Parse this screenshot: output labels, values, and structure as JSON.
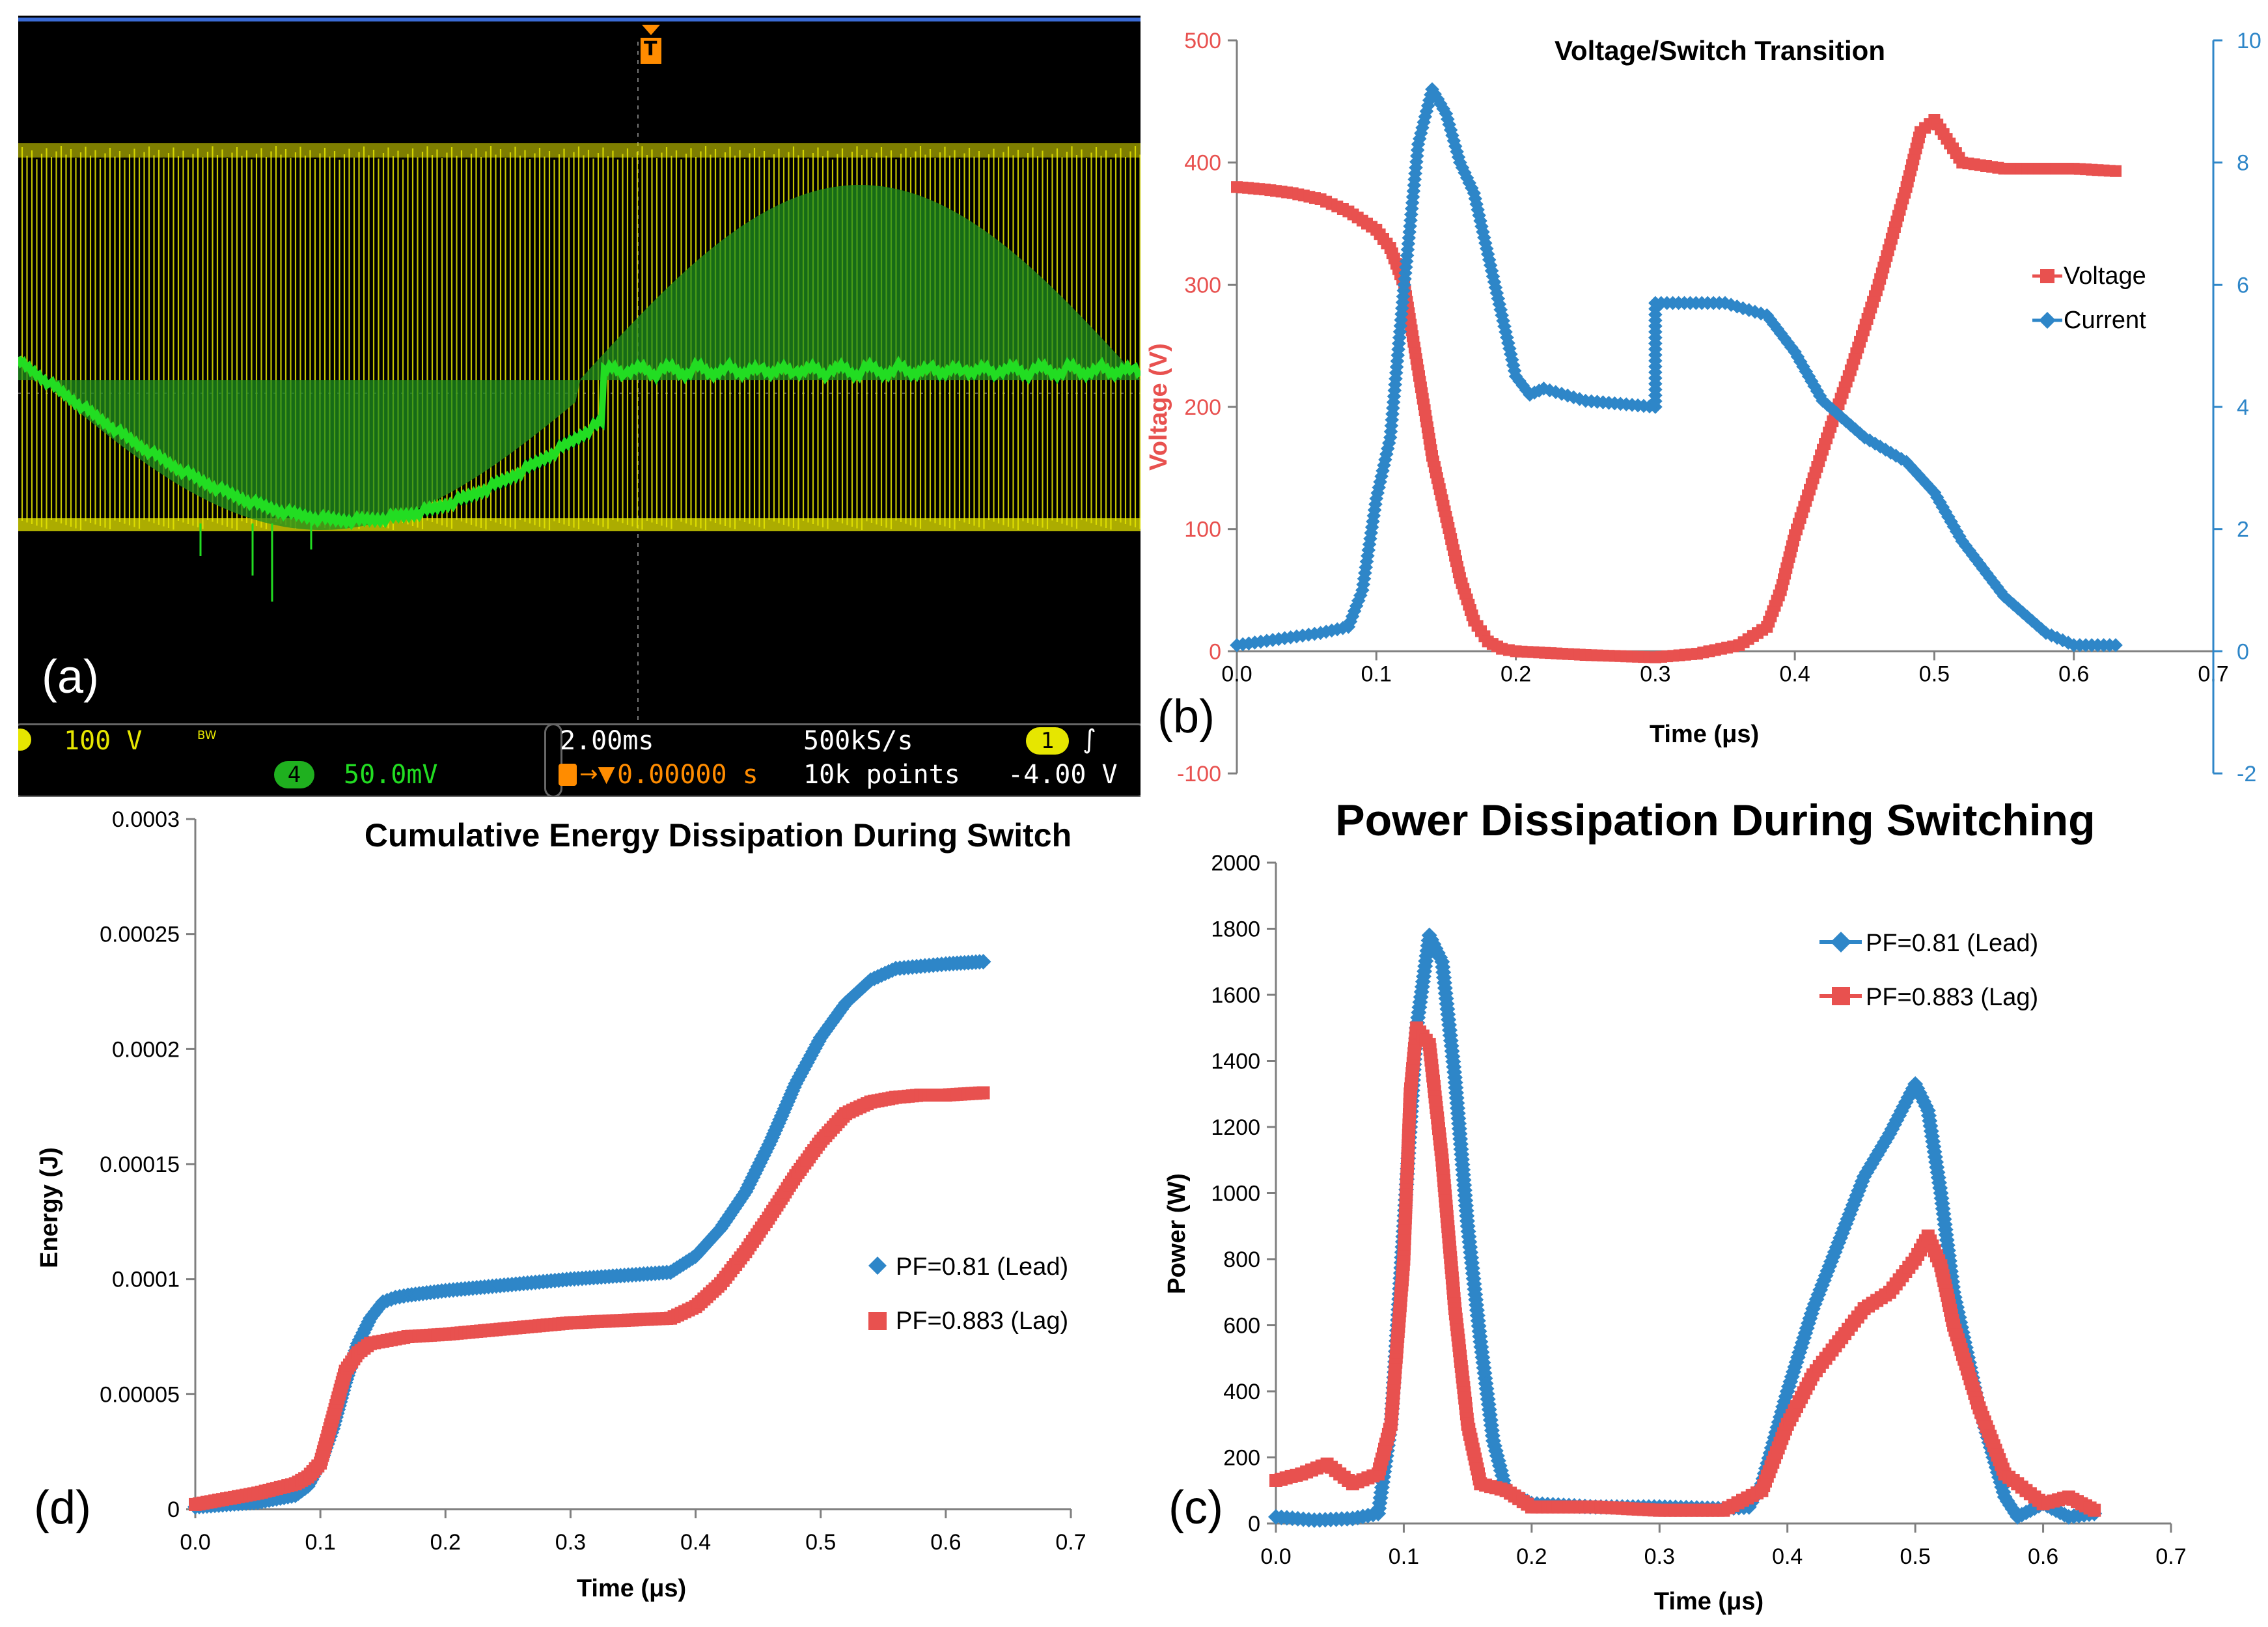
{
  "scope": {
    "panel_label": "(a)",
    "ch1_scale": "100 V",
    "bw": "BW",
    "ch4_badge": "4",
    "ch4_scale": "50.0mV",
    "timebase": "2.00ms",
    "trigger_pos": "0.00000 s",
    "sample_rate": "500kS/s",
    "record_len": "10k points",
    "trig_ch": "1",
    "trig_level": "-4.00 V",
    "trigger_marker": "T",
    "colors": {
      "ch1": "#e6e600",
      "ch4": "#22dd22",
      "bg": "#000000",
      "accent": "#ff8c00"
    }
  },
  "chart_data": [
    {
      "id": "b",
      "panel_label": "(b)",
      "type": "line",
      "title": "Voltage/Switch Transition",
      "xlabel": "Time (μs)",
      "ylabel": "Voltage (V)",
      "y2label": "",
      "xlim": [
        0,
        0.7
      ],
      "ylim": [
        -100,
        500
      ],
      "y2lim": [
        -2,
        10
      ],
      "xticks": [
        "0.0",
        "0.1",
        "0.2",
        "0.3",
        "0.4",
        "0.5",
        "0.6",
        "0.7"
      ],
      "yticks": [
        "-100",
        "0",
        "100",
        "200",
        "300",
        "400",
        "500"
      ],
      "y2ticks": [
        "-2",
        "0",
        "2",
        "4",
        "6",
        "8",
        "10"
      ],
      "legend_position": "right",
      "series": [
        {
          "name": "Voltage",
          "axis": "left",
          "color": "#e8514f",
          "marker": "square",
          "x": [
            0,
            0.02,
            0.04,
            0.06,
            0.08,
            0.1,
            0.11,
            0.12,
            0.13,
            0.14,
            0.15,
            0.16,
            0.17,
            0.18,
            0.19,
            0.2,
            0.25,
            0.3,
            0.33,
            0.36,
            0.38,
            0.39,
            0.4,
            0.42,
            0.44,
            0.46,
            0.48,
            0.49,
            0.5,
            0.52,
            0.55,
            0.6,
            0.63
          ],
          "y": [
            380,
            378,
            375,
            370,
            360,
            345,
            330,
            300,
            230,
            160,
            110,
            60,
            25,
            8,
            2,
            0,
            -3,
            -5,
            -2,
            5,
            20,
            50,
            95,
            165,
            230,
            300,
            380,
            425,
            435,
            400,
            395,
            395,
            393
          ]
        },
        {
          "name": "Current",
          "axis": "right",
          "color": "#2e86c8",
          "marker": "diamond",
          "x": [
            0,
            0.03,
            0.06,
            0.08,
            0.09,
            0.1,
            0.11,
            0.12,
            0.13,
            0.14,
            0.15,
            0.16,
            0.17,
            0.18,
            0.19,
            0.2,
            0.21,
            0.22,
            0.25,
            0.3,
            0.3,
            0.35,
            0.38,
            0.4,
            0.42,
            0.45,
            0.48,
            0.5,
            0.52,
            0.55,
            0.58,
            0.6,
            0.63
          ],
          "y": [
            0.1,
            0.2,
            0.3,
            0.4,
            1.0,
            2.5,
            3.5,
            6.0,
            8.3,
            9.2,
            8.8,
            8.0,
            7.5,
            6.5,
            5.5,
            4.5,
            4.2,
            4.3,
            4.1,
            4.0,
            5.7,
            5.7,
            5.5,
            4.9,
            4.1,
            3.5,
            3.1,
            2.6,
            1.8,
            0.9,
            0.3,
            0.1,
            0.1
          ]
        }
      ]
    },
    {
      "id": "c",
      "panel_label": "(c)",
      "type": "line",
      "title": "Power Dissipation During Switching",
      "xlabel": "Time (μs)",
      "ylabel": "Power (W)",
      "xlim": [
        0,
        0.7
      ],
      "ylim": [
        0,
        2000
      ],
      "xticks": [
        "0.0",
        "0.1",
        "0.2",
        "0.3",
        "0.4",
        "0.5",
        "0.6",
        "0.7"
      ],
      "yticks": [
        "0",
        "200",
        "400",
        "600",
        "800",
        "1000",
        "1200",
        "1400",
        "1600",
        "1800",
        "2000"
      ],
      "legend_position": "top-right",
      "series": [
        {
          "name": "PF=0.81 (Lead)",
          "color": "#2e86c8",
          "marker": "diamond",
          "x": [
            0,
            0.03,
            0.06,
            0.08,
            0.09,
            0.1,
            0.11,
            0.12,
            0.13,
            0.14,
            0.15,
            0.16,
            0.17,
            0.18,
            0.2,
            0.25,
            0.3,
            0.35,
            0.37,
            0.38,
            0.4,
            0.42,
            0.44,
            0.46,
            0.48,
            0.5,
            0.51,
            0.52,
            0.53,
            0.55,
            0.57,
            0.58,
            0.6,
            0.62,
            0.64
          ],
          "y": [
            20,
            10,
            15,
            30,
            300,
            900,
            1500,
            1780,
            1700,
            1350,
            900,
            550,
            250,
            100,
            60,
            50,
            50,
            45,
            50,
            120,
            400,
            650,
            850,
            1050,
            1180,
            1330,
            1250,
            1000,
            700,
            350,
            80,
            20,
            60,
            20,
            30
          ]
        },
        {
          "name": "PF=0.883 (Lag)",
          "color": "#e8514f",
          "marker": "square",
          "x": [
            0,
            0.02,
            0.04,
            0.06,
            0.08,
            0.09,
            0.1,
            0.105,
            0.11,
            0.12,
            0.13,
            0.14,
            0.15,
            0.16,
            0.18,
            0.2,
            0.25,
            0.3,
            0.35,
            0.38,
            0.4,
            0.42,
            0.44,
            0.46,
            0.48,
            0.5,
            0.51,
            0.52,
            0.53,
            0.55,
            0.57,
            0.6,
            0.62,
            0.64
          ],
          "y": [
            130,
            150,
            180,
            120,
            150,
            300,
            800,
            1300,
            1500,
            1450,
            1100,
            650,
            300,
            120,
            100,
            50,
            50,
            40,
            40,
            100,
            300,
            450,
            550,
            650,
            700,
            800,
            870,
            780,
            600,
            350,
            150,
            60,
            80,
            40
          ]
        }
      ]
    },
    {
      "id": "d",
      "panel_label": "(d)",
      "type": "line",
      "title": "Cumulative Energy Dissipation During Switch",
      "xlabel": "Time (μs)",
      "ylabel": "Energy (J)",
      "xlim": [
        0,
        0.7
      ],
      "ylim": [
        0,
        0.0003
      ],
      "xticks": [
        "0.0",
        "0.1",
        "0.2",
        "0.3",
        "0.4",
        "0.5",
        "0.6",
        "0.7"
      ],
      "yticks": [
        "0",
        "0.00005",
        "0.0001",
        "0.00015",
        "0.0002",
        "0.00025",
        "0.0003"
      ],
      "legend_position": "right",
      "series": [
        {
          "name": "PF=0.81 (Lead)",
          "color": "#2e86c8",
          "marker": "diamond",
          "x": [
            0,
            0.05,
            0.08,
            0.09,
            0.1,
            0.11,
            0.12,
            0.13,
            0.14,
            0.15,
            0.16,
            0.17,
            0.2,
            0.3,
            0.38,
            0.4,
            0.42,
            0.44,
            0.46,
            0.48,
            0.5,
            0.52,
            0.54,
            0.56,
            0.58,
            0.6,
            0.63
          ],
          "y": [
            1e-06,
            3e-06,
            6e-06,
            1e-05,
            2e-05,
            3.5e-05,
            5.5e-05,
            7.2e-05,
            8.3e-05,
            9e-05,
            9.2e-05,
            9.3e-05,
            9.5e-05,
            0.0001,
            0.000103,
            0.00011,
            0.000122,
            0.000138,
            0.00016,
            0.000185,
            0.000205,
            0.00022,
            0.00023,
            0.000235,
            0.000236,
            0.000237,
            0.000238
          ]
        },
        {
          "name": "PF=0.883 (Lag)",
          "color": "#e8514f",
          "marker": "square",
          "x": [
            0,
            0.05,
            0.08,
            0.09,
            0.1,
            0.11,
            0.12,
            0.13,
            0.14,
            0.15,
            0.16,
            0.17,
            0.2,
            0.3,
            0.38,
            0.4,
            0.42,
            0.44,
            0.46,
            0.48,
            0.5,
            0.52,
            0.54,
            0.56,
            0.58,
            0.6,
            0.63
          ],
          "y": [
            2e-06,
            7e-06,
            1.1e-05,
            1.4e-05,
            2e-05,
            4e-05,
            6e-05,
            6.8e-05,
            7.2e-05,
            7.3e-05,
            7.4e-05,
            7.5e-05,
            7.6e-05,
            8.1e-05,
            8.3e-05,
            8.8e-05,
            9.8e-05,
            0.000112,
            0.000128,
            0.000145,
            0.00016,
            0.000172,
            0.000177,
            0.000179,
            0.00018,
            0.00018,
            0.000181
          ]
        }
      ]
    }
  ]
}
